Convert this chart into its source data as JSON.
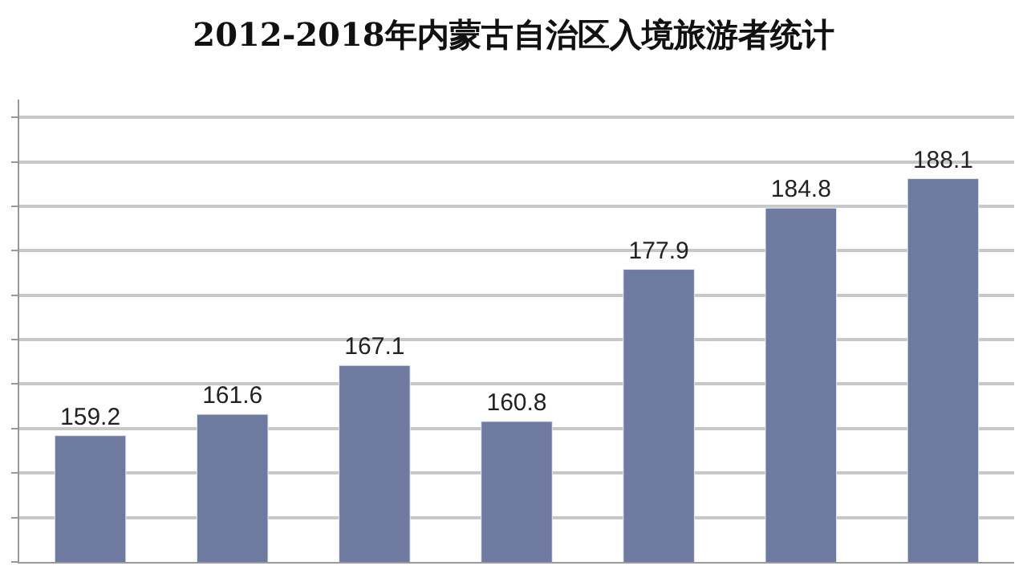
{
  "chart_data": {
    "type": "bar",
    "title": "2012-2018年内蒙古自治区入境旅游者统计",
    "categories": [
      null,
      null,
      null,
      null,
      null,
      null,
      null
    ],
    "values": [
      159.2,
      161.6,
      167.1,
      160.8,
      177.9,
      184.8,
      188.1
    ],
    "color": "#6f7aa0",
    "ylim": [
      145,
      197
    ],
    "yticks": [
      {
        "value": 145,
        "label": null
      },
      {
        "value": 150,
        "label": null
      },
      {
        "value": 155,
        "label": null
      },
      {
        "value": 160,
        "label": null
      },
      {
        "value": 165,
        "label": null
      },
      {
        "value": 170,
        "label": null
      },
      {
        "value": 175,
        "label": null
      },
      {
        "value": 180,
        "label": null
      },
      {
        "value": 185,
        "label": null
      },
      {
        "value": 190,
        "label": null
      },
      {
        "value": 195,
        "label": null
      }
    ],
    "grid": "y",
    "data_labels": true
  }
}
